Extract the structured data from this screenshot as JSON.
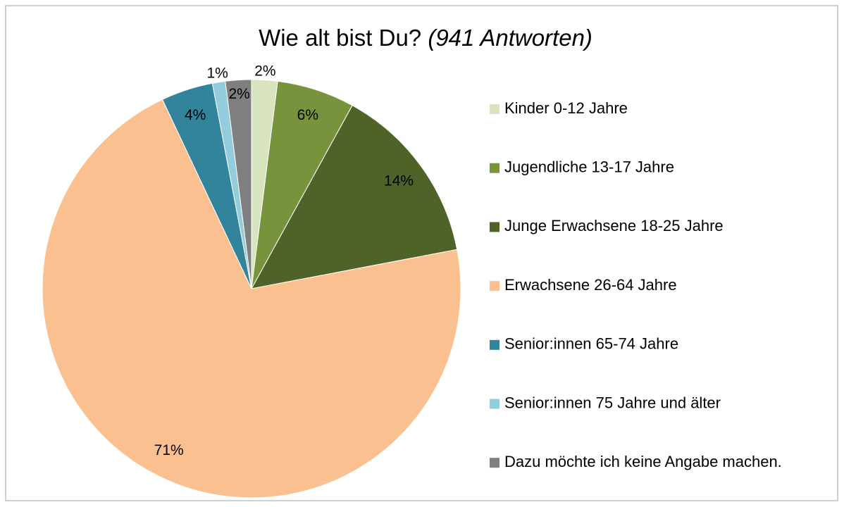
{
  "chart_data": {
    "type": "pie",
    "title": "Wie alt bist Du?",
    "subtitle": "(941 Antworten)",
    "categories": [
      "Kinder 0-12 Jahre",
      "Jugendliche 13-17 Jahre",
      "Junge Erwachsene 18-25 Jahre",
      "Erwachsene 26-64 Jahre",
      "Senior:innen 65-74 Jahre",
      "Senior:innen 75 Jahre und älter",
      "Dazu möchte ich keine Angabe machen."
    ],
    "values": [
      2,
      6,
      14,
      71,
      4,
      1,
      2
    ],
    "value_labels": [
      "2%",
      "6%",
      "14%",
      "71%",
      "4%",
      "1%",
      "2%"
    ],
    "colors": [
      "#d7e4bd",
      "#77933c",
      "#4f6228",
      "#fac090",
      "#31849b",
      "#93cddd",
      "#7f7f7f"
    ],
    "legend": "right"
  }
}
